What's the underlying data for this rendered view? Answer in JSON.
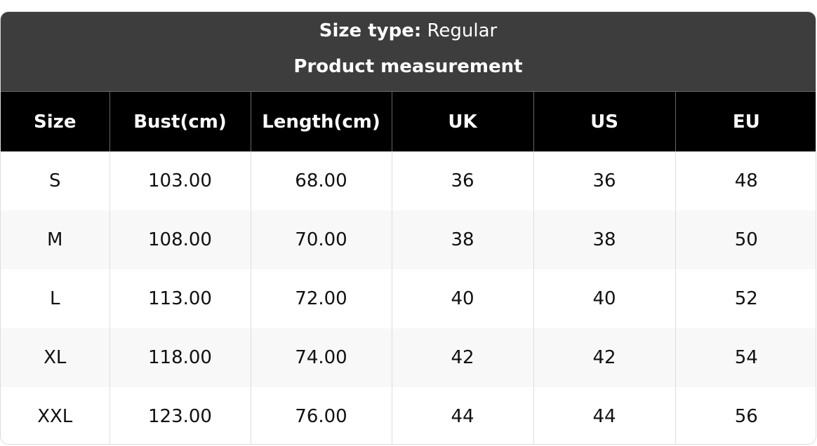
{
  "header": {
    "size_type_label": "Size type:",
    "size_type_value": "Regular",
    "subtitle": "Product measurement"
  },
  "table": {
    "columns": [
      "Size",
      "Bust(cm)",
      "Length(cm)",
      "UK",
      "US",
      "EU"
    ],
    "rows": [
      [
        "S",
        "103.00",
        "68.00",
        "36",
        "36",
        "48"
      ],
      [
        "M",
        "108.00",
        "70.00",
        "38",
        "38",
        "50"
      ],
      [
        "L",
        "113.00",
        "72.00",
        "40",
        "40",
        "52"
      ],
      [
        "XL",
        "118.00",
        "74.00",
        "42",
        "42",
        "54"
      ],
      [
        "XXL",
        "123.00",
        "76.00",
        "44",
        "44",
        "56"
      ]
    ]
  },
  "colors": {
    "header_bg": "#3d3d3d",
    "column_header_bg": "#000000",
    "alt_row_bg": "#f8f8f8"
  }
}
